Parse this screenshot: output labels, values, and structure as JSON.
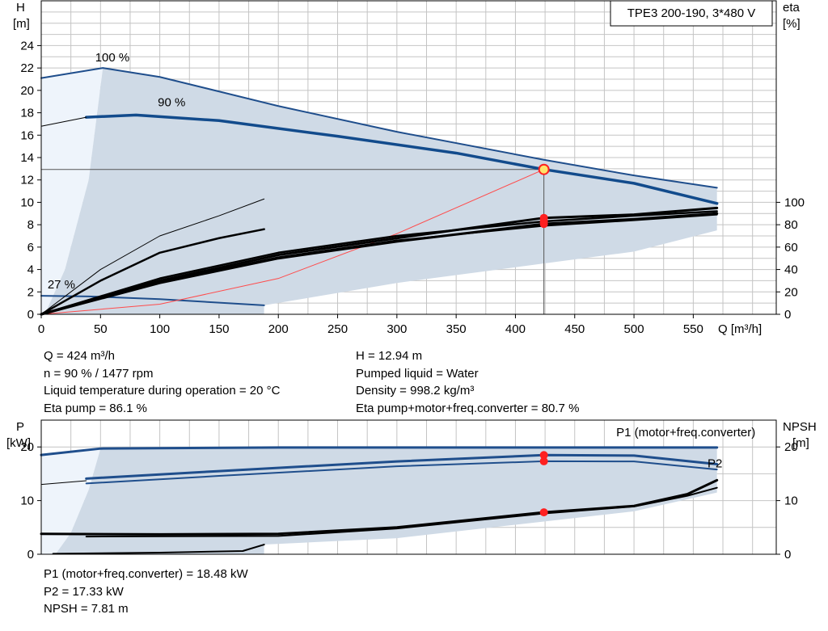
{
  "chart_data": [
    {
      "type": "line",
      "title": "TPE3 200-190, 3*480 V",
      "xlabel": "Q [m³/h]",
      "ylabel_left_unit": "[m]",
      "ylabel_left": "H",
      "ylabel_right": "eta",
      "ylabel_right_unit": "[%]",
      "xlim": [
        0,
        620
      ],
      "ylim": [
        0,
        28
      ],
      "ylim_right": [
        0,
        280
      ],
      "x_ticks": [
        "0",
        "50",
        "100",
        "150",
        "200",
        "250",
        "300",
        "350",
        "400",
        "450",
        "500",
        "550"
      ],
      "x_tick_values": [
        0,
        50,
        100,
        150,
        200,
        250,
        300,
        350,
        400,
        450,
        500,
        550
      ],
      "y_ticks": [
        "0",
        "2",
        "4",
        "6",
        "8",
        "10",
        "12",
        "14",
        "16",
        "18",
        "20",
        "22",
        "24"
      ],
      "y_tick_values": [
        0,
        2,
        4,
        6,
        8,
        10,
        12,
        14,
        16,
        18,
        20,
        22,
        24
      ],
      "y2_ticks": [
        "0",
        "20",
        "40",
        "60",
        "80",
        "100"
      ],
      "y2_tick_values": [
        0,
        20,
        40,
        60,
        80,
        100
      ],
      "grid": true,
      "curve_labels": [
        {
          "text": "100 %",
          "x": 60,
          "y": 22.6
        },
        {
          "text": "90 %",
          "x": 110,
          "y": 18.6
        },
        {
          "text": "27 %",
          "x": 17,
          "y": 2.3
        }
      ],
      "operating_point": {
        "q": 424,
        "h": 12.94,
        "eta_pump": 86.1,
        "eta_total": 80.7
      },
      "series": [
        {
          "role": "h_max",
          "color": "#1f4e8c",
          "points": [
            [
              0,
              21.1
            ],
            [
              52,
              22
            ],
            [
              100,
              21.2
            ],
            [
              200,
              18.6
            ],
            [
              300,
              16.3
            ],
            [
              424,
              13.8
            ],
            [
              500,
              12.4
            ],
            [
              570,
              11.3
            ]
          ]
        },
        {
          "role": "h_op",
          "color": "#124b8c",
          "points": [
            [
              38,
              17.6
            ],
            [
              80,
              17.8
            ],
            [
              150,
              17.3
            ],
            [
              250,
              15.9
            ],
            [
              350,
              14.4
            ],
            [
              424,
              12.94
            ],
            [
              500,
              11.7
            ],
            [
              570,
              9.9
            ]
          ]
        },
        {
          "role": "h_ext",
          "color": "#000000",
          "points": [
            [
              0,
              16.8
            ],
            [
              38,
              17.6
            ]
          ]
        },
        {
          "role": "h_min",
          "color": "#1f4e8c",
          "points": [
            [
              0,
              1.65
            ],
            [
              40,
              1.6
            ],
            [
              100,
              1.35
            ],
            [
              188,
              0.8
            ]
          ]
        },
        {
          "role": "system_curve",
          "color": "#ff4b4b",
          "points": [
            [
              0,
              0
            ],
            [
              100,
              0.9
            ],
            [
              200,
              3.2
            ],
            [
              300,
              7.2
            ],
            [
              424,
              12.94
            ]
          ]
        },
        {
          "role": "eta_pump_100",
          "color": "#000000",
          "points": [
            [
              0,
              0
            ],
            [
              100,
              32
            ],
            [
              200,
              55
            ],
            [
              300,
              70
            ],
            [
              424,
              83
            ],
            [
              500,
              88
            ],
            [
              570,
              92
            ]
          ]
        },
        {
          "role": "eta_pump_op",
          "color": "#000000",
          "points": [
            [
              0,
              0
            ],
            [
              100,
              30
            ],
            [
              200,
              53
            ],
            [
              300,
              68
            ],
            [
              424,
              86.1
            ],
            [
              500,
              89
            ],
            [
              570,
              95
            ]
          ]
        },
        {
          "role": "eta_total_op",
          "color": "#000000",
          "points": [
            [
              0,
              0
            ],
            [
              100,
              28
            ],
            [
              200,
              50
            ],
            [
              300,
              65
            ],
            [
              424,
              80.7
            ],
            [
              500,
              85
            ],
            [
              570,
              90
            ]
          ]
        },
        {
          "role": "eta_total_100",
          "color": "#000000",
          "points": [
            [
              0,
              0
            ],
            [
              100,
              29
            ],
            [
              200,
              51
            ],
            [
              300,
              66
            ],
            [
              424,
              79
            ],
            [
              500,
              84
            ],
            [
              570,
              89
            ]
          ]
        },
        {
          "role": "eta_27_a",
          "color": "#000000",
          "points": [
            [
              0,
              0
            ],
            [
              50,
              30
            ],
            [
              100,
              55
            ],
            [
              150,
              68
            ],
            [
              188,
              76
            ]
          ]
        },
        {
          "role": "eta_27_b",
          "color": "#000000",
          "points": [
            [
              0,
              0
            ],
            [
              50,
              40
            ],
            [
              100,
              70
            ],
            [
              150,
              88
            ],
            [
              188,
              103
            ]
          ]
        }
      ]
    },
    {
      "type": "line",
      "xlabel": "",
      "ylabel_left": "P",
      "ylabel_left_unit": "[kW]",
      "ylabel_right": "NPSH",
      "ylabel_right_unit": "[m]",
      "xlim": [
        0,
        620
      ],
      "ylim": [
        0,
        25
      ],
      "y_ticks": [
        "0",
        "10",
        "20"
      ],
      "y_tick_values": [
        0,
        10,
        20
      ],
      "y2_ticks": [
        "0",
        "10",
        "20"
      ],
      "y2_tick_values": [
        0,
        10,
        20
      ],
      "grid": true,
      "curve_labels": [
        {
          "text": "P1 (motor+freq.converter)",
          "x": 485,
          "y": 22,
          "color": "#1f4e8c"
        },
        {
          "text": "P2",
          "x": 562,
          "y": 16.2,
          "color": "#1f4e8c"
        }
      ],
      "operating_point": {
        "q": 424,
        "p1": 18.48,
        "p2": 17.33,
        "npsh": 7.81
      },
      "series": [
        {
          "role": "p1_max",
          "color": "#1f4e8c",
          "points": [
            [
              0,
              18.5
            ],
            [
              50,
              19.7
            ],
            [
              200,
              19.9
            ],
            [
              400,
              19.9
            ],
            [
              570,
              19.9
            ]
          ]
        },
        {
          "role": "p1_op",
          "color": "#1f4e8c",
          "points": [
            [
              38,
              14.1
            ],
            [
              150,
              15.5
            ],
            [
              300,
              17.3
            ],
            [
              424,
              18.48
            ],
            [
              500,
              18.4
            ],
            [
              570,
              16.8
            ]
          ]
        },
        {
          "role": "p2_op",
          "color": "#1f4e8c",
          "points": [
            [
              38,
              13.2
            ],
            [
              150,
              14.6
            ],
            [
              300,
              16.4
            ],
            [
              424,
              17.33
            ],
            [
              500,
              17.3
            ],
            [
              570,
              15.8
            ]
          ]
        },
        {
          "role": "p_ext",
          "color": "#000000",
          "points": [
            [
              0,
              13.0
            ],
            [
              38,
              13.7
            ]
          ]
        },
        {
          "role": "npsh",
          "color": "#000000",
          "points": [
            [
              0,
              3.8
            ],
            [
              100,
              3.7
            ],
            [
              200,
              3.8
            ],
            [
              300,
              5.0
            ],
            [
              424,
              7.81
            ],
            [
              500,
              9.0
            ],
            [
              545,
              11.2
            ],
            [
              570,
              13.8
            ]
          ]
        },
        {
          "role": "npsh_b",
          "color": "#000000",
          "points": [
            [
              38,
              3.3
            ],
            [
              200,
              3.4
            ],
            [
              300,
              4.8
            ],
            [
              424,
              7.6
            ],
            [
              500,
              8.9
            ],
            [
              545,
              10.9
            ],
            [
              570,
              12.4
            ]
          ]
        },
        {
          "role": "p_min",
          "color": "#000000",
          "points": [
            [
              10,
              0.1
            ],
            [
              100,
              0.3
            ],
            [
              170,
              0.6
            ],
            [
              188,
              1.8
            ]
          ]
        }
      ]
    }
  ],
  "info_top_left": [
    "Q = 424 m³/h",
    "n = 90 % / 1477 rpm",
    "Liquid temperature during operation = 20 °C",
    "Eta pump = 86.1 %"
  ],
  "info_top_right": [
    "H = 12.94 m",
    "Pumped liquid = Water",
    "Density = 998.2 kg/m³",
    "Eta pump+motor+freq.converter = 80.7 %"
  ],
  "info_bottom": [
    "P1 (motor+freq.converter) = 18.48 kW",
    "P2 = 17.33 kW",
    "NPSH = 7.81 m"
  ],
  "colors": {
    "envelope": "#cfdae6",
    "envelope_light": "#eef4fb",
    "curve_blue": "#1f4e8c",
    "grid": "#c4c4c4",
    "system_curve": "#ff4b4b",
    "operating_point": "#ff2020",
    "operating_point_fill": "#ffe36a"
  }
}
